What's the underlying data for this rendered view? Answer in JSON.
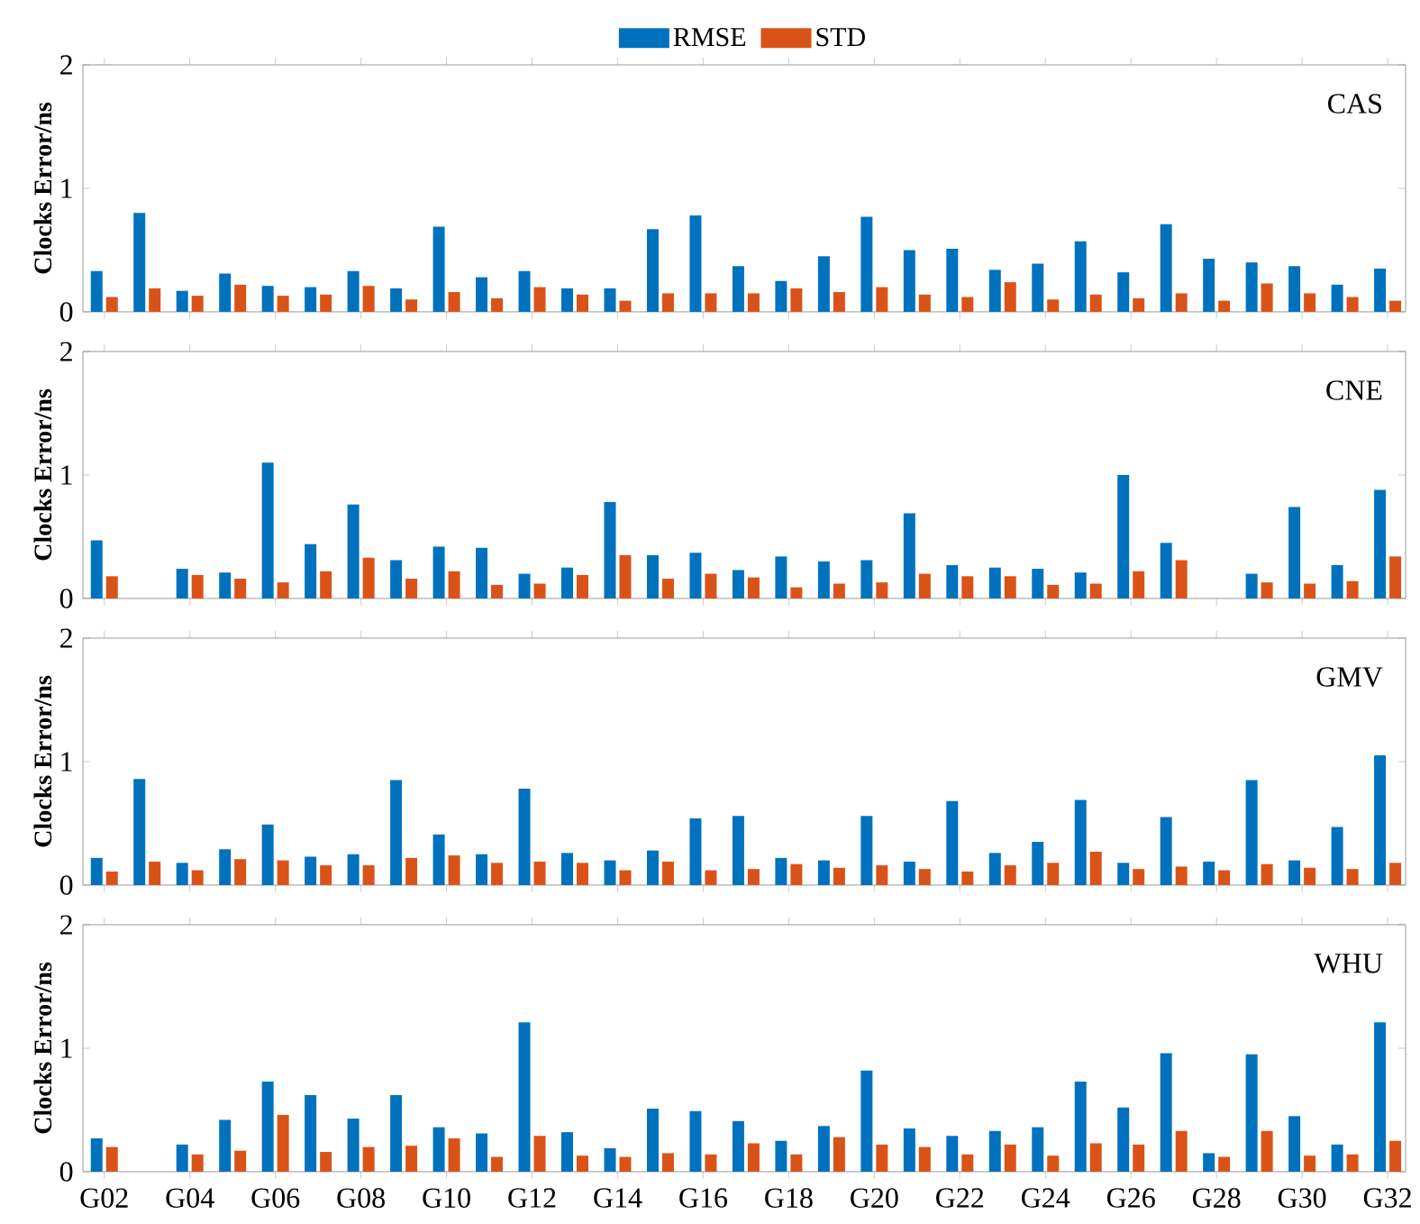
{
  "chart_data": [
    {
      "type": "bar",
      "title": "CAS",
      "ylabel": "Clocks Error/ns",
      "legend": "top",
      "tick_labels": "y",
      "categories": [
        null,
        null,
        null,
        null,
        null,
        null,
        null,
        null,
        null,
        null,
        null,
        null,
        null,
        null,
        null,
        null,
        null,
        null,
        null,
        null,
        null,
        null,
        null,
        null,
        null,
        null,
        null,
        null,
        null,
        null,
        null
      ],
      "ylim": [
        0,
        2
      ],
      "yticks": [
        0,
        1,
        2
      ],
      "series": [
        {
          "name": "RMSE",
          "color": "#0072bd",
          "values": [
            0.33,
            0.8,
            0.17,
            0.31,
            0.21,
            0.2,
            0.33,
            0.19,
            0.69,
            0.28,
            0.33,
            0.19,
            0.19,
            0.67,
            0.78,
            0.37,
            0.25,
            0.45,
            0.77,
            0.5,
            0.51,
            0.34,
            0.39,
            0.57,
            0.32,
            0.71,
            0.43,
            0.4,
            0.37,
            0.22,
            0.35
          ]
        },
        {
          "name": "STD",
          "color": "#d95319",
          "values": [
            0.12,
            0.19,
            0.13,
            0.22,
            0.13,
            0.14,
            0.21,
            0.1,
            0.16,
            0.11,
            0.2,
            0.14,
            0.09,
            0.15,
            0.15,
            0.15,
            0.19,
            0.16,
            0.2,
            0.14,
            0.12,
            0.24,
            0.1,
            0.14,
            0.11,
            0.15,
            0.09,
            0.23,
            0.15,
            0.12,
            0.09
          ]
        }
      ]
    },
    {
      "type": "bar",
      "title": "CNE",
      "ylabel": "Clocks Error/ns",
      "tick_labels": "y",
      "categories": [
        null,
        null,
        null,
        null,
        null,
        null,
        null,
        null,
        null,
        null,
        null,
        null,
        null,
        null,
        null,
        null,
        null,
        null,
        null,
        null,
        null,
        null,
        null,
        null,
        null,
        null,
        null,
        null,
        null,
        null,
        null
      ],
      "ylim": [
        0,
        2
      ],
      "yticks": [
        0,
        1,
        2
      ],
      "series": [
        {
          "color": "#0072bd",
          "values": [
            0.47,
            null,
            0.24,
            0.21,
            1.1,
            0.44,
            0.76,
            0.31,
            0.42,
            0.41,
            0.2,
            0.25,
            0.78,
            0.35,
            0.37,
            0.23,
            0.34,
            0.3,
            0.31,
            0.69,
            0.27,
            0.25,
            0.24,
            0.21,
            1.0,
            0.45,
            null,
            0.2,
            0.74,
            0.27,
            0.88
          ]
        },
        {
          "color": "#d95319",
          "values": [
            0.18,
            null,
            0.19,
            0.16,
            0.13,
            0.22,
            0.33,
            0.16,
            0.22,
            0.11,
            0.12,
            0.19,
            0.35,
            0.16,
            0.2,
            0.17,
            0.09,
            0.12,
            0.13,
            0.2,
            0.18,
            0.18,
            0.11,
            0.12,
            0.22,
            0.31,
            null,
            0.13,
            0.12,
            0.14,
            0.34
          ]
        }
      ]
    },
    {
      "type": "bar",
      "title": "GMV",
      "ylabel": "Clocks Error/ns",
      "tick_labels": "y",
      "categories": [
        null,
        null,
        null,
        null,
        null,
        null,
        null,
        null,
        null,
        null,
        null,
        null,
        null,
        null,
        null,
        null,
        null,
        null,
        null,
        null,
        null,
        null,
        null,
        null,
        null,
        null,
        null,
        null,
        null,
        null,
        null
      ],
      "ylim": [
        0,
        2
      ],
      "yticks": [
        0,
        1,
        2
      ],
      "series": [
        {
          "color": "#0072bd",
          "values": [
            0.22,
            0.86,
            0.18,
            0.29,
            0.49,
            0.23,
            0.25,
            0.85,
            0.41,
            0.25,
            0.78,
            0.26,
            0.2,
            0.28,
            0.54,
            0.56,
            0.22,
            0.2,
            0.56,
            0.19,
            0.68,
            0.26,
            0.35,
            0.69,
            0.18,
            0.55,
            0.19,
            0.85,
            0.2,
            0.47,
            1.05
          ]
        },
        {
          "color": "#d95319",
          "values": [
            0.11,
            0.19,
            0.12,
            0.21,
            0.2,
            0.16,
            0.16,
            0.22,
            0.24,
            0.18,
            0.19,
            0.18,
            0.12,
            0.19,
            0.12,
            0.13,
            0.17,
            0.14,
            0.16,
            0.13,
            0.11,
            0.16,
            0.18,
            0.27,
            0.13,
            0.15,
            0.12,
            0.17,
            0.14,
            0.13,
            0.18
          ]
        }
      ]
    },
    {
      "type": "bar",
      "title": "WHU",
      "ylabel": "Clocks Error/ns",
      "categories": [
        "G02",
        null,
        "G04",
        null,
        "G06",
        null,
        "G08",
        null,
        "G10",
        null,
        "G12",
        null,
        "G14",
        null,
        "G16",
        null,
        "G18",
        null,
        "G20",
        null,
        "G22",
        null,
        "G24",
        null,
        "G26",
        null,
        "G28",
        null,
        "G30",
        null,
        "G32"
      ],
      "ylim": [
        0,
        2
      ],
      "yticks": [
        0,
        1,
        2
      ],
      "series": [
        {
          "color": "#0072bd",
          "values": [
            0.27,
            null,
            0.22,
            0.42,
            0.73,
            0.62,
            0.43,
            0.62,
            0.36,
            0.31,
            1.21,
            0.32,
            0.19,
            0.51,
            0.49,
            0.41,
            0.25,
            0.37,
            0.82,
            0.35,
            0.29,
            0.33,
            0.36,
            0.73,
            0.52,
            0.96,
            0.15,
            0.95,
            0.45,
            0.22,
            1.21
          ]
        },
        {
          "color": "#d95319",
          "values": [
            0.2,
            null,
            0.14,
            0.17,
            0.46,
            0.16,
            0.2,
            0.21,
            0.27,
            0.12,
            0.29,
            0.13,
            0.12,
            0.15,
            0.14,
            0.23,
            0.14,
            0.28,
            0.22,
            0.2,
            0.14,
            0.22,
            0.13,
            0.23,
            0.22,
            0.33,
            0.12,
            0.33,
            0.13,
            0.14,
            0.25
          ]
        }
      ]
    }
  ]
}
